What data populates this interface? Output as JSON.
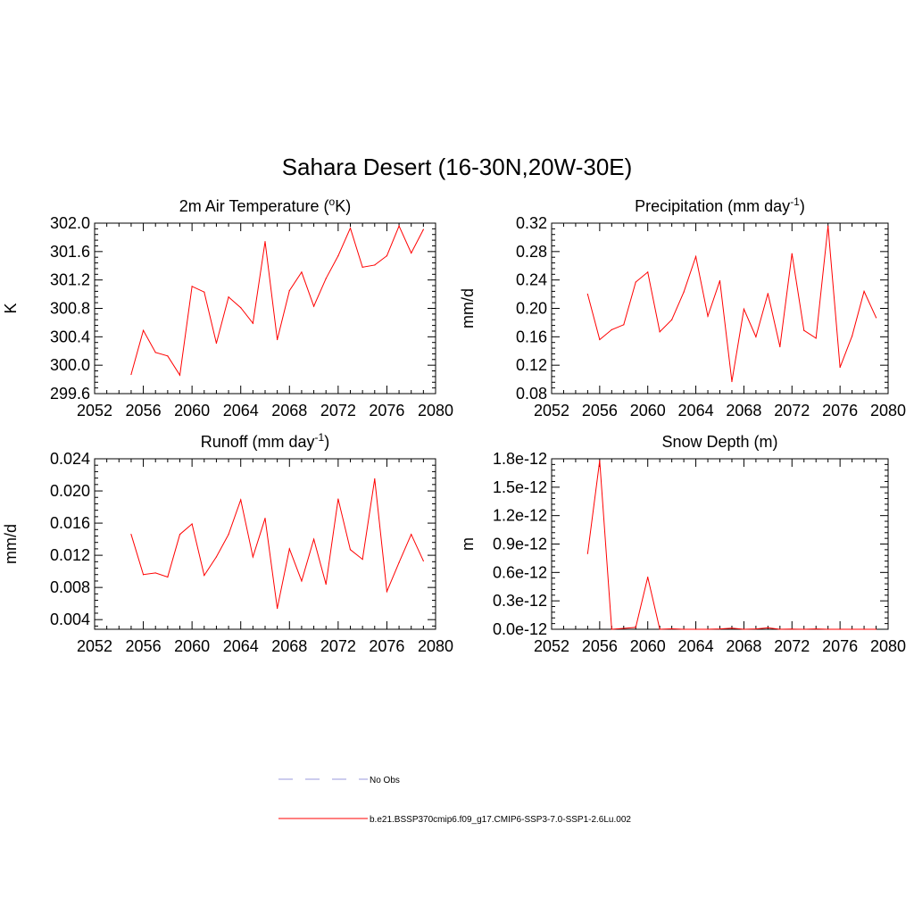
{
  "figure": {
    "title": "Sahara Desert (16-30N,20W-30E)"
  },
  "legend": {
    "entries": [
      {
        "label": "No Obs",
        "color": "#9999dd",
        "style": "dashed"
      },
      {
        "label": "b.e21.BSSP370cmip6.f09_g17.CMIP6-SSP3-7.0-SSP1-2.6Lu.002",
        "color": "#ff0000",
        "style": "solid"
      }
    ]
  },
  "chart_data": [
    {
      "type": "line",
      "title": "2m Air Temperature (",
      "title_parts": {
        "pre": "2m Air Temperature (",
        "sup_before": "o",
        "post": "K)"
      },
      "ylabel": "K",
      "xlim": [
        2052,
        2080
      ],
      "ylim": [
        299.6,
        302.0
      ],
      "xticks": [
        "2052",
        "2056",
        "2060",
        "2064",
        "2068",
        "2072",
        "2076",
        "2080"
      ],
      "yticks": [
        "299.6",
        "300.0",
        "300.4",
        "300.8",
        "301.2",
        "301.6",
        "302.0"
      ],
      "series": [
        {
          "color": "#ff0000",
          "x": [
            2055,
            2056,
            2057,
            2058,
            2059,
            2060,
            2061,
            2062,
            2063,
            2064,
            2065,
            2066,
            2067,
            2068,
            2069,
            2070,
            2071,
            2072,
            2073,
            2074,
            2075,
            2076,
            2077,
            2078,
            2079
          ],
          "y": [
            299.87,
            300.49,
            300.18,
            300.13,
            299.86,
            301.11,
            301.03,
            300.31,
            300.96,
            300.81,
            300.59,
            301.74,
            300.36,
            301.05,
            301.31,
            300.83,
            301.22,
            301.54,
            301.93,
            301.38,
            301.41,
            301.54,
            301.96,
            301.58,
            301.91
          ]
        }
      ]
    },
    {
      "type": "line",
      "title": "Precipitation (mm day",
      "title_parts": {
        "pre": "Precipitation (mm day",
        "sup": "-1",
        "post": ")"
      },
      "ylabel": "mm/d",
      "xlim": [
        2052,
        2080
      ],
      "ylim": [
        0.08,
        0.32
      ],
      "xticks": [
        "2052",
        "2056",
        "2060",
        "2064",
        "2068",
        "2072",
        "2076",
        "2080"
      ],
      "yticks": [
        "0.08",
        "0.12",
        "0.16",
        "0.20",
        "0.24",
        "0.28",
        "0.32"
      ],
      "series": [
        {
          "color": "#ff0000",
          "x": [
            2055,
            2056,
            2057,
            2058,
            2059,
            2060,
            2061,
            2062,
            2063,
            2064,
            2065,
            2066,
            2067,
            2068,
            2069,
            2070,
            2071,
            2072,
            2073,
            2074,
            2075,
            2076,
            2077,
            2078,
            2079
          ],
          "y": [
            0.22,
            0.156,
            0.17,
            0.177,
            0.237,
            0.251,
            0.167,
            0.184,
            0.223,
            0.273,
            0.189,
            0.239,
            0.097,
            0.199,
            0.16,
            0.221,
            0.146,
            0.277,
            0.169,
            0.158,
            0.316,
            0.117,
            0.161,
            0.224,
            0.187
          ]
        }
      ]
    },
    {
      "type": "line",
      "title": "Runoff (mm day",
      "title_parts": {
        "pre": "Runoff (mm day",
        "sup": "-1",
        "post": ")"
      },
      "ylabel": "mm/d",
      "xlim": [
        2052,
        2080
      ],
      "ylim": [
        0.0028,
        0.024
      ],
      "xticks": [
        "2052",
        "2056",
        "2060",
        "2064",
        "2068",
        "2072",
        "2076",
        "2080"
      ],
      "yticks": [
        "0.004",
        "0.008",
        "0.012",
        "0.016",
        "0.020",
        "0.024"
      ],
      "series": [
        {
          "color": "#ff0000",
          "x": [
            2055,
            2056,
            2057,
            2058,
            2059,
            2060,
            2061,
            2062,
            2063,
            2064,
            2065,
            2066,
            2067,
            2068,
            2069,
            2070,
            2071,
            2072,
            2073,
            2074,
            2075,
            2076,
            2077,
            2078,
            2079
          ],
          "y": [
            0.0146,
            0.0096,
            0.0098,
            0.0093,
            0.0146,
            0.0159,
            0.0095,
            0.0118,
            0.0146,
            0.0189,
            0.0118,
            0.0166,
            0.0054,
            0.0128,
            0.0088,
            0.014,
            0.0084,
            0.019,
            0.0127,
            0.0115,
            0.0215,
            0.0075,
            0.0111,
            0.0146,
            0.0113
          ]
        }
      ]
    },
    {
      "type": "line",
      "title": "Snow Depth (m)",
      "title_parts": {
        "pre": "Snow Depth (m)",
        "post": ""
      },
      "ylabel": "m",
      "xlim": [
        2052,
        2080
      ],
      "ylim": [
        0,
        1.8e-12
      ],
      "xticks": [
        "2052",
        "2056",
        "2060",
        "2064",
        "2068",
        "2072",
        "2076",
        "2080"
      ],
      "yticks": [
        "0.0e-12",
        "0.3e-12",
        "0.6e-12",
        "0.9e-12",
        "1.2e-12",
        "1.5e-12",
        "1.8e-12"
      ],
      "series": [
        {
          "color": "#ff0000",
          "x": [
            2055,
            2056,
            2057,
            2058,
            2059,
            2060,
            2061,
            2062,
            2063,
            2064,
            2065,
            2066,
            2067,
            2068,
            2069,
            2070,
            2071,
            2072,
            2073,
            2074,
            2075,
            2076,
            2077,
            2078,
            2079
          ],
          "y": [
            8e-13,
            1.78e-12,
            0,
            1e-14,
            2e-14,
            5.5e-13,
            0,
            5e-15,
            0,
            0,
            0,
            3e-15,
            1.2e-14,
            0,
            4e-15,
            1.5e-14,
            0,
            2e-15,
            0,
            3e-15,
            0,
            0,
            0,
            0,
            0
          ]
        }
      ]
    }
  ]
}
